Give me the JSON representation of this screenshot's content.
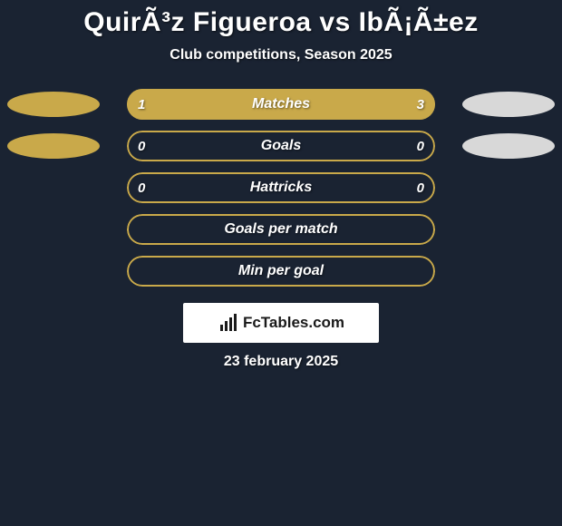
{
  "header": {
    "title": "QuirÃ³z Figueroa vs IbÃ¡Ã±ez",
    "subtitle": "Club competitions, Season 2025"
  },
  "colors": {
    "background": "#1a2332",
    "left_accent": "#c9a94a",
    "right_accent": "#d8d8d8",
    "bar_fill_left": "#c9a94a",
    "bar_fill_right": "#c9a94a",
    "bar_border": "#c9a94a",
    "text": "#ffffff",
    "logo_bg": "#ffffff",
    "logo_text": "#1a1a1a"
  },
  "bars": [
    {
      "label": "Matches",
      "left_value": "1",
      "right_value": "3",
      "left_pct": 25,
      "right_pct": 75,
      "show_ellipses": true
    },
    {
      "label": "Goals",
      "left_value": "0",
      "right_value": "0",
      "left_pct": 0,
      "right_pct": 0,
      "show_ellipses": true
    },
    {
      "label": "Hattricks",
      "left_value": "0",
      "right_value": "0",
      "left_pct": 0,
      "right_pct": 0,
      "show_ellipses": false
    },
    {
      "label": "Goals per match",
      "left_value": "",
      "right_value": "",
      "left_pct": 0,
      "right_pct": 0,
      "show_ellipses": false
    },
    {
      "label": "Min per goal",
      "left_value": "",
      "right_value": "",
      "left_pct": 0,
      "right_pct": 0,
      "show_ellipses": false
    }
  ],
  "logo": {
    "text": "FcTables.com"
  },
  "footer": {
    "date": "23 february 2025"
  },
  "typography": {
    "title_fontsize": 30,
    "subtitle_fontsize": 16,
    "bar_label_fontsize": 16,
    "bar_value_fontsize": 15,
    "date_fontsize": 16
  }
}
